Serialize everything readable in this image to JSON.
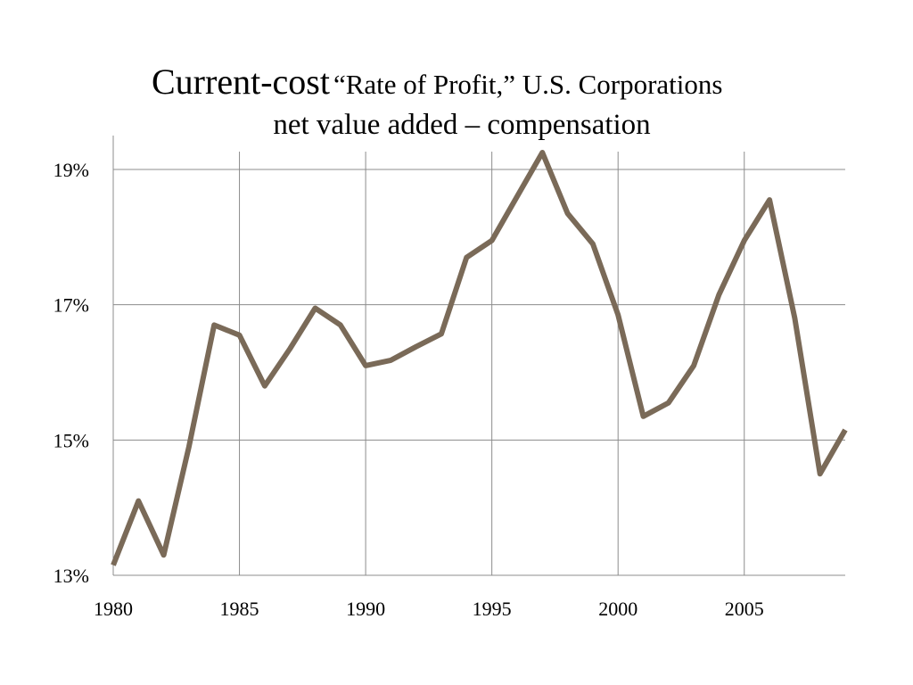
{
  "chart_data": {
    "type": "line",
    "title_main": "Current-cost",
    "title_rest": "“Rate of Profit,” U.S. Corporations",
    "subtitle": "net value added – compensation",
    "xlabel": "",
    "ylabel": "",
    "x": [
      1980,
      1981,
      1982,
      1983,
      1984,
      1985,
      1986,
      1987,
      1988,
      1989,
      1990,
      1991,
      1992,
      1993,
      1994,
      1995,
      1996,
      1997,
      1998,
      1999,
      2000,
      2001,
      2002,
      2003,
      2004,
      2005,
      2006,
      2007,
      2008,
      2009
    ],
    "series": [
      {
        "values": [
          13.15,
          14.1,
          13.3,
          14.9,
          16.7,
          16.55,
          15.8,
          16.35,
          16.95,
          16.7,
          16.1,
          16.18,
          16.38,
          16.57,
          17.7,
          17.95,
          18.6,
          19.25,
          18.35,
          17.9,
          16.85,
          15.35,
          15.55,
          16.1,
          17.15,
          17.95,
          18.55,
          16.8,
          14.5,
          15.15
        ],
        "color": "#7a6a58"
      }
    ],
    "xlim": [
      1980,
      2009
    ],
    "ylim": [
      13,
      19.5
    ],
    "x_ticks": [
      1980,
      1985,
      1990,
      1995,
      2000,
      2005
    ],
    "x_tick_labels": [
      "1980",
      "1985",
      "1990",
      "1995",
      "2000",
      "2005"
    ],
    "y_ticks": [
      13,
      15,
      17,
      19
    ],
    "y_tick_labels": [
      "13%",
      "15%",
      "17%",
      "19%"
    ],
    "grid": true,
    "legend": "none"
  }
}
